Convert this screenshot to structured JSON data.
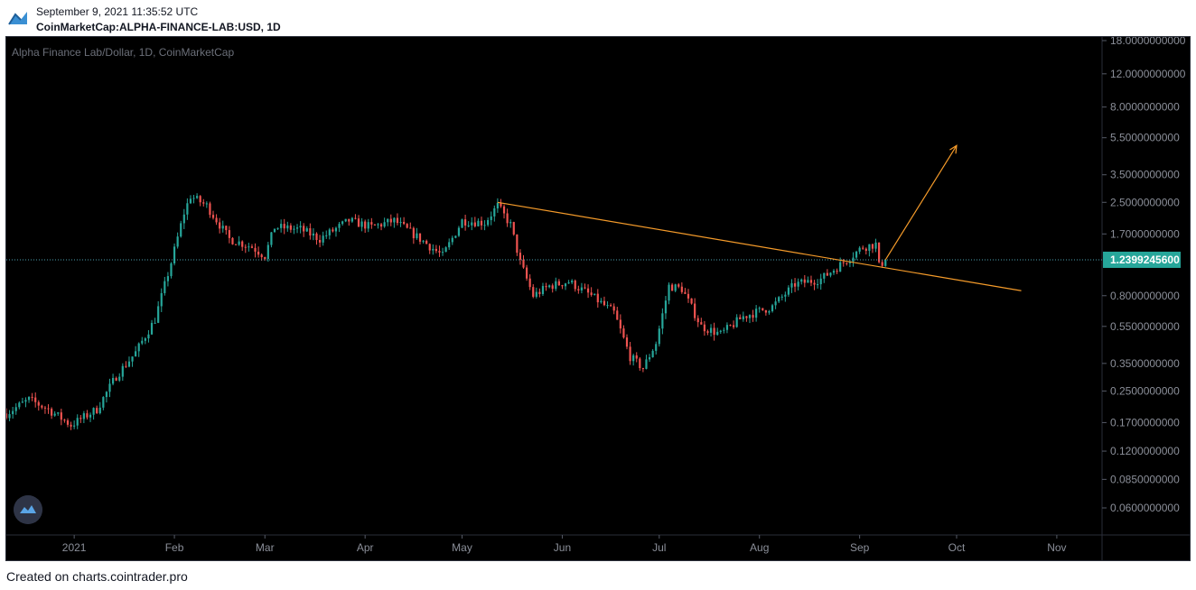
{
  "header": {
    "timestamp": "September 9, 2021 11:35:52 UTC",
    "symbol": "CoinMarketCap:ALPHA-FINANCE-LAB:USD, 1D",
    "logo_icon": "tradingview-logo-icon"
  },
  "chart": {
    "legend_title": "Alpha Finance Lab/Dollar, 1D, CoinMarketCap",
    "badge_icon": "tradingview-cloud-icon"
  },
  "chart_data": {
    "type": "candlestick",
    "scale": "log",
    "grid": false,
    "y_ticks": [
      "18.0000000000",
      "12.0000000000",
      "8.0000000000",
      "5.5000000000",
      "3.5000000000",
      "2.5000000000",
      "1.7000000000",
      "1.2399245600",
      "0.8000000000",
      "0.5500000000",
      "0.3500000000",
      "0.2500000000",
      "0.1700000000",
      "0.1200000000",
      "0.0850000000",
      "0.0600000000"
    ],
    "y_tick_values": [
      18,
      12,
      8,
      5.5,
      3.5,
      2.5,
      1.7,
      0.8,
      0.55,
      0.35,
      0.25,
      0.17,
      0.12,
      0.085,
      0.06
    ],
    "last_price": "1.2399245600",
    "last_price_value": 1.23992456,
    "x_tick_labels": [
      "2021",
      "Feb",
      "Mar",
      "Apr",
      "May",
      "Jun",
      "Jul",
      "Aug",
      "Sep",
      "Oct",
      "Nov"
    ],
    "x_tick_dates": [
      "2021-01-01",
      "2021-02-01",
      "2021-03-01",
      "2021-04-01",
      "2021-05-01",
      "2021-06-01",
      "2021-07-01",
      "2021-08-01",
      "2021-09-01",
      "2021-10-01",
      "2021-11-01"
    ],
    "x_range": [
      "2020-12-11",
      "2021-11-15"
    ],
    "colors": {
      "up": "#26a69a",
      "down": "#ef5350",
      "trendline": "#f59b2a",
      "price_line": "#4c9fb0",
      "price_label_bg": "#26a69a"
    },
    "price_path": [
      [
        "2020-12-11",
        0.19
      ],
      [
        "2020-12-18",
        0.225
      ],
      [
        "2020-12-24",
        0.2
      ],
      [
        "2020-12-31",
        0.165
      ],
      [
        "2021-01-08",
        0.2
      ],
      [
        "2021-01-14",
        0.3
      ],
      [
        "2021-01-20",
        0.4
      ],
      [
        "2021-01-26",
        0.6
      ],
      [
        "2021-01-31",
        1.2
      ],
      [
        "2021-02-04",
        2.2
      ],
      [
        "2021-02-06",
        2.7
      ],
      [
        "2021-02-11",
        2.4
      ],
      [
        "2021-02-18",
        1.6
      ],
      [
        "2021-02-25",
        1.45
      ],
      [
        "2021-03-01",
        1.3
      ],
      [
        "2021-03-04",
        1.85
      ],
      [
        "2021-03-12",
        1.8
      ],
      [
        "2021-03-18",
        1.6
      ],
      [
        "2021-03-27",
        2.0
      ],
      [
        "2021-04-03",
        1.85
      ],
      [
        "2021-04-10",
        2.0
      ],
      [
        "2021-04-18",
        1.6
      ],
      [
        "2021-04-25",
        1.3
      ],
      [
        "2021-05-01",
        2.0
      ],
      [
        "2021-05-08",
        1.95
      ],
      [
        "2021-05-12",
        2.4
      ],
      [
        "2021-05-16",
        1.9
      ],
      [
        "2021-05-19",
        1.2
      ],
      [
        "2021-05-23",
        0.8
      ],
      [
        "2021-05-28",
        0.9
      ],
      [
        "2021-06-03",
        0.95
      ],
      [
        "2021-06-10",
        0.8
      ],
      [
        "2021-06-17",
        0.65
      ],
      [
        "2021-06-22",
        0.38
      ],
      [
        "2021-06-26",
        0.33
      ],
      [
        "2021-06-30",
        0.45
      ],
      [
        "2021-07-04",
        0.9
      ],
      [
        "2021-07-08",
        0.87
      ],
      [
        "2021-07-14",
        0.55
      ],
      [
        "2021-07-20",
        0.5
      ],
      [
        "2021-07-27",
        0.62
      ],
      [
        "2021-08-05",
        0.7
      ],
      [
        "2021-08-12",
        0.92
      ],
      [
        "2021-08-20",
        0.98
      ],
      [
        "2021-08-27",
        1.2
      ],
      [
        "2021-09-02",
        1.45
      ],
      [
        "2021-09-06",
        1.5
      ],
      [
        "2021-09-07",
        1.15
      ],
      [
        "2021-09-09",
        1.24
      ]
    ],
    "annotations": [
      {
        "type": "trendline",
        "start": [
          "2021-05-12",
          2.5
        ],
        "end": [
          "2021-10-21",
          0.85
        ]
      },
      {
        "type": "arrow",
        "start": [
          "2021-09-09",
          1.24
        ],
        "end": [
          "2021-10-01",
          5.0
        ]
      }
    ]
  },
  "footer": {
    "text": "Created on charts.cointrader.pro"
  }
}
